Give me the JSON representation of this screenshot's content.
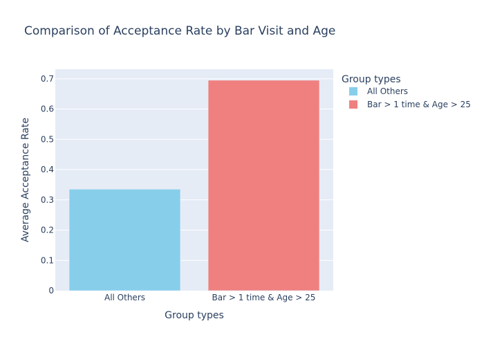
{
  "chart_data": {
    "type": "bar",
    "title": "Comparison of Acceptance Rate by Bar Visit and Age",
    "xlabel": "Group types",
    "ylabel": "Average Acceptance Rate",
    "categories": [
      "All Others",
      "Bar > 1 time & Age > 25"
    ],
    "values": [
      0.335,
      0.695
    ],
    "colors": [
      "#87ceeb",
      "#f08080"
    ],
    "ylim": [
      0,
      0.7316
    ],
    "yticks": [
      0,
      0.1,
      0.2,
      0.3,
      0.4,
      0.5,
      0.6,
      0.7
    ],
    "ytick_labels": [
      "0",
      "0.1",
      "0.2",
      "0.3",
      "0.4",
      "0.5",
      "0.6",
      "0.7"
    ],
    "grid": true,
    "plot_background": "#e5ecf6",
    "legend": {
      "title": "Group types",
      "placement": "right",
      "entries": [
        "All Others",
        "Bar > 1 time & Age > 25"
      ]
    }
  }
}
